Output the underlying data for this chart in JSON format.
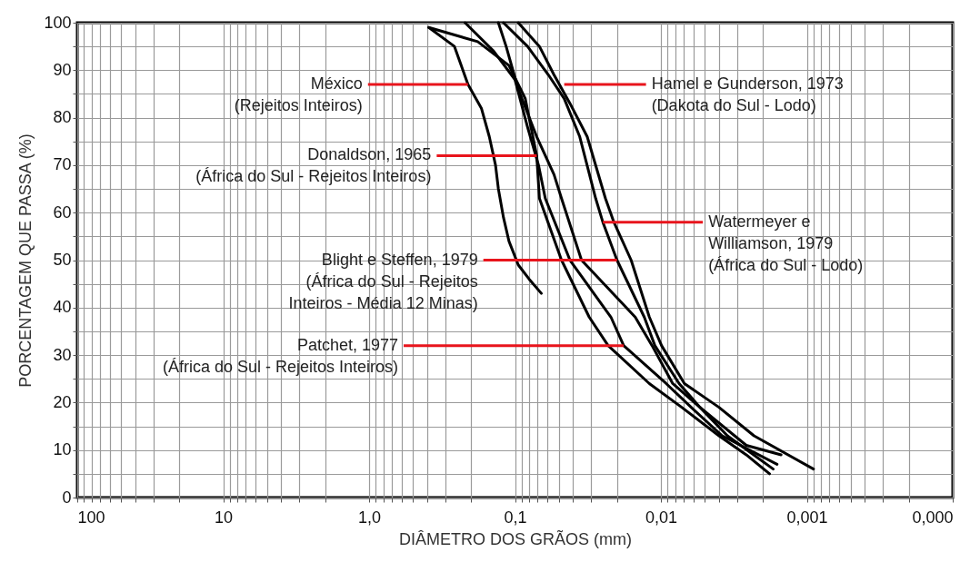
{
  "chart_data": {
    "type": "line",
    "xlabel": "DIÂMETRO DOS GRÃOS (mm)",
    "ylabel": "PORCENTAGEM QUE PASSA (%)",
    "log": "x",
    "grid": true,
    "xlim": [
      100,
      0.0001
    ],
    "xticks": [
      100,
      {
        "value": 90,
        "label": null
      },
      {
        "value": 80,
        "label": null
      },
      {
        "value": 70,
        "label": null
      },
      {
        "value": 60,
        "label": null
      },
      {
        "value": 50,
        "label": null
      },
      {
        "value": 40,
        "label": null
      },
      {
        "value": 30,
        "label": null
      },
      {
        "value": 20,
        "label": null
      },
      10,
      {
        "value": 9,
        "label": null
      },
      {
        "value": 8,
        "label": null
      },
      {
        "value": 7,
        "label": null
      },
      {
        "value": 6,
        "label": null
      },
      {
        "value": 5,
        "label": null
      },
      {
        "value": 4,
        "label": null
      },
      {
        "value": 3,
        "label": null
      },
      {
        "value": 2,
        "label": null
      },
      {
        "value": 1,
        "label": "1,0"
      },
      {
        "value": 0.9,
        "label": null
      },
      {
        "value": 0.8,
        "label": null
      },
      {
        "value": 0.7,
        "label": null
      },
      {
        "value": 0.6,
        "label": null
      },
      {
        "value": 0.5,
        "label": null
      },
      {
        "value": 0.4,
        "label": null
      },
      {
        "value": 0.3,
        "label": null
      },
      {
        "value": 0.2,
        "label": null
      },
      {
        "value": 0.1,
        "label": "0,1"
      },
      {
        "value": 0.09,
        "label": null
      },
      {
        "value": 0.08,
        "label": null
      },
      {
        "value": 0.07,
        "label": null
      },
      {
        "value": 0.06,
        "label": null
      },
      {
        "value": 0.05,
        "label": null
      },
      {
        "value": 0.04,
        "label": null
      },
      {
        "value": 0.03,
        "label": null
      },
      {
        "value": 0.02,
        "label": null
      },
      {
        "value": 0.01,
        "label": "0,01"
      },
      {
        "value": 0.009,
        "label": null
      },
      {
        "value": 0.008,
        "label": null
      },
      {
        "value": 0.007,
        "label": null
      },
      {
        "value": 0.006,
        "label": null
      },
      {
        "value": 0.005,
        "label": null
      },
      {
        "value": 0.004,
        "label": null
      },
      {
        "value": 0.003,
        "label": null
      },
      {
        "value": 0.002,
        "label": null
      },
      {
        "value": 0.001,
        "label": "0,001"
      },
      {
        "value": 0.0009,
        "label": null
      },
      {
        "value": 0.0008,
        "label": null
      },
      {
        "value": 0.0007,
        "label": null
      },
      {
        "value": 0.0006,
        "label": null
      },
      {
        "value": 0.0005,
        "label": null
      },
      {
        "value": 0.0004,
        "label": null
      },
      {
        "value": 0.0003,
        "label": null
      },
      {
        "value": 0.0002,
        "label": null
      },
      {
        "value": 0.0001,
        "label": "0,000"
      }
    ],
    "ylim": [
      0,
      100
    ],
    "yticks": [
      0,
      {
        "value": 5,
        "label": null
      },
      10,
      {
        "value": 15,
        "label": null
      },
      20,
      {
        "value": 25,
        "label": null
      },
      30,
      {
        "value": 35,
        "label": null
      },
      40,
      {
        "value": 45,
        "label": null
      },
      50,
      {
        "value": 55,
        "label": null
      },
      60,
      {
        "value": 65,
        "label": null
      },
      70,
      {
        "value": 75,
        "label": null
      },
      80,
      {
        "value": 85,
        "label": null
      },
      90,
      {
        "value": 95,
        "label": null
      },
      100
    ],
    "series": [
      {
        "color": "#000000",
        "x": [
          0.39,
          0.26,
          0.21,
          0.17,
          0.15,
          0.136,
          0.13,
          0.12,
          0.11,
          0.095,
          0.08,
          0.066
        ],
        "values": [
          99,
          95,
          87,
          82,
          76,
          70,
          65,
          59,
          54,
          49,
          46,
          43
        ]
      },
      {
        "color": "#000000",
        "x": [
          0.39,
          0.18,
          0.11,
          0.085,
          0.071,
          0.068,
          0.048,
          0.031,
          0.023,
          0.012,
          0.0072,
          0.004,
          0.0026,
          0.0018
        ],
        "values": [
          99,
          96,
          91,
          84,
          72,
          63,
          50,
          38,
          32,
          24,
          19,
          13,
          9,
          5
        ]
      },
      {
        "color": "#000000",
        "x": [
          0.22,
          0.14,
          0.1,
          0.082,
          0.069,
          0.062,
          0.042,
          0.022,
          0.018,
          0.0092,
          0.0062,
          0.0038,
          0.0016
        ],
        "values": [
          100,
          94,
          88,
          78,
          70,
          63,
          50,
          38,
          32,
          24,
          19,
          13,
          7
        ]
      },
      {
        "color": "#000000",
        "x": [
          0.13,
          0.115,
          0.095,
          0.071,
          0.054,
          0.048,
          0.035,
          0.015,
          0.0115,
          0.0083,
          0.0054,
          0.0026,
          0.0015
        ],
        "values": [
          100,
          95,
          86,
          76,
          68,
          63,
          50,
          38,
          32,
          24,
          19,
          11,
          9
        ]
      },
      {
        "color": "#000000",
        "x": [
          0.12,
          0.082,
          0.059,
          0.046,
          0.036,
          0.028,
          0.025,
          0.02,
          0.013,
          0.011,
          0.0075,
          0.0054,
          0.0035,
          0.0017
        ],
        "values": [
          100,
          95,
          89,
          84,
          76,
          63,
          58,
          50,
          38,
          32,
          24,
          19,
          13,
          6
        ]
      },
      {
        "color": "#000000",
        "x": [
          0.095,
          0.068,
          0.054,
          0.042,
          0.032,
          0.024,
          0.021,
          0.016,
          0.012,
          0.0099,
          0.0069,
          0.004,
          0.0023,
          0.0009
        ],
        "values": [
          100,
          95,
          89,
          83,
          76,
          63,
          58,
          50,
          38,
          32,
          24,
          19,
          13,
          6
        ]
      }
    ],
    "annotations": [
      {
        "text": "México\n(Rejeitos Inteiros)",
        "x": 0.21,
        "y": 87
      },
      {
        "text": "Hamel e Gunderson, 1973\n(Dakota do Sul - Lodo)",
        "x": 0.046,
        "y": 87
      },
      {
        "text": "Donaldson, 1965\n(África do Sul - Rejeitos Inteiros)",
        "x": 0.071,
        "y": 72
      },
      {
        "text": "Watermeyer e\nWilliamson, 1979\n(África do Sul - Lodo)",
        "x": 0.025,
        "y": 58
      },
      {
        "text": "Blight e Steffen, 1979\n(África do Sul - Rejeitos\nInteiros - Média 12 Minas)",
        "x": 0.02,
        "y": 50
      },
      {
        "text": "Patchet, 1977\n(África do Sul - Rejeitos Inteiros)",
        "x": 0.018,
        "y": 32
      }
    ]
  }
}
